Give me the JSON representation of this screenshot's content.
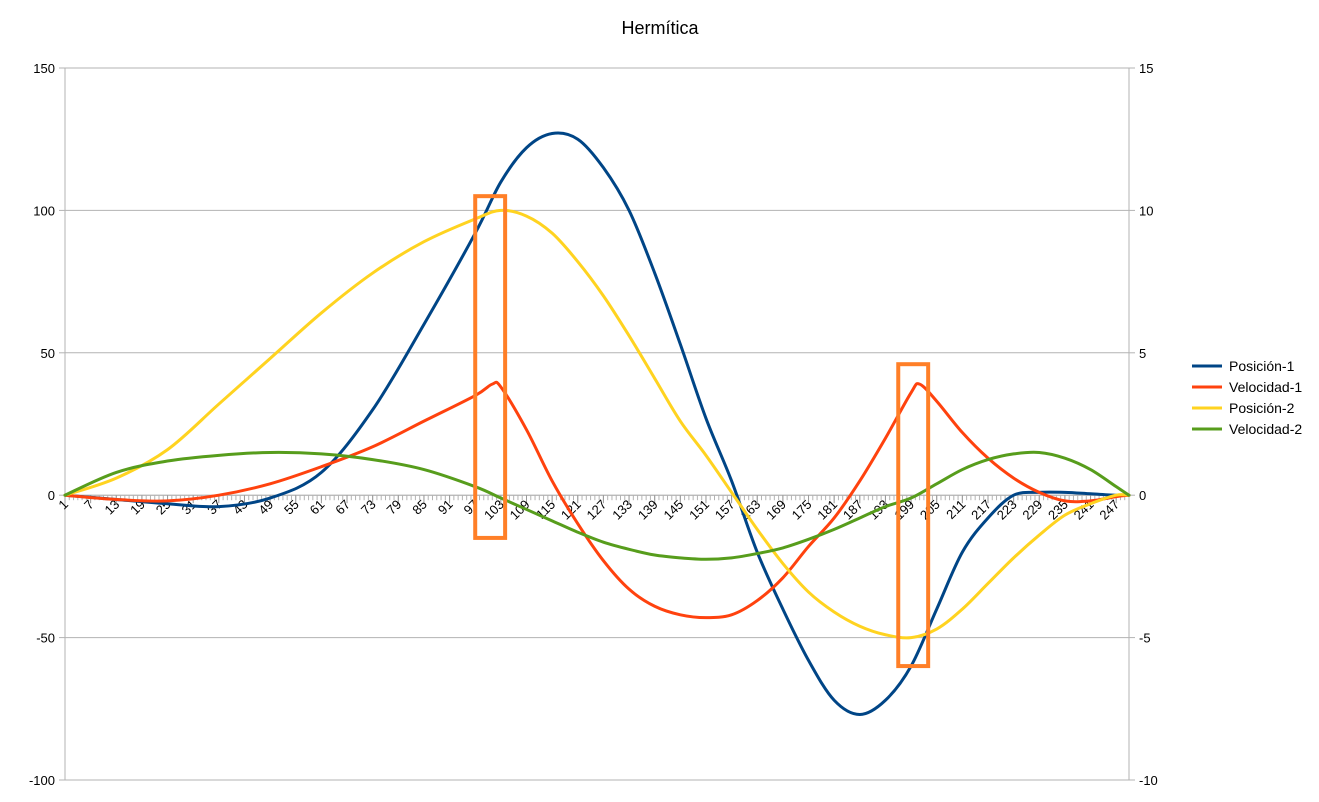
{
  "chart_data": {
    "type": "line",
    "title": "Hermítica",
    "x": {
      "min": 1,
      "max": 250,
      "tick_labels": [
        "1",
        "7",
        "13",
        "19",
        "25",
        "31",
        "37",
        "43",
        "49",
        "55",
        "61",
        "67",
        "73",
        "79",
        "85",
        "91",
        "97",
        "103",
        "109",
        "115",
        "121",
        "127",
        "133",
        "139",
        "145",
        "151",
        "157",
        "163",
        "169",
        "175",
        "181",
        "187",
        "193",
        "199",
        "205",
        "211",
        "217",
        "223",
        "229",
        "235",
        "241",
        "247"
      ]
    },
    "y_left": {
      "min": -100,
      "max": 150,
      "ticks": [
        -100,
        -50,
        0,
        50,
        100,
        150
      ]
    },
    "y_right": {
      "min": -10,
      "max": 15,
      "ticks": [
        -10,
        -5,
        0,
        5,
        10,
        15
      ]
    },
    "grid": true,
    "legend_position": "right",
    "series": [
      {
        "name": "Posición-1",
        "axis": "left",
        "color": "#004586",
        "points": [
          [
            1,
            0
          ],
          [
            13,
            -1.5
          ],
          [
            25,
            -3
          ],
          [
            37,
            -4
          ],
          [
            49,
            -1
          ],
          [
            61,
            8
          ],
          [
            73,
            30
          ],
          [
            85,
            60
          ],
          [
            97,
            92
          ],
          [
            103,
            110
          ],
          [
            109,
            122
          ],
          [
            115,
            127
          ],
          [
            121,
            125
          ],
          [
            127,
            115
          ],
          [
            133,
            100
          ],
          [
            139,
            78
          ],
          [
            145,
            53
          ],
          [
            151,
            27
          ],
          [
            157,
            5
          ],
          [
            163,
            -20
          ],
          [
            169,
            -40
          ],
          [
            175,
            -58
          ],
          [
            181,
            -72
          ],
          [
            187,
            -77
          ],
          [
            193,
            -72
          ],
          [
            199,
            -60
          ],
          [
            205,
            -40
          ],
          [
            211,
            -20
          ],
          [
            217,
            -8
          ],
          [
            223,
            0
          ],
          [
            229,
            1
          ],
          [
            235,
            1
          ],
          [
            241,
            0.5
          ],
          [
            247,
            0
          ],
          [
            250,
            0
          ]
        ]
      },
      {
        "name": "Velocidad-1",
        "axis": "left",
        "color": "#ff420e",
        "points": [
          [
            1,
            0
          ],
          [
            13,
            -1.5
          ],
          [
            25,
            -2
          ],
          [
            37,
            0
          ],
          [
            49,
            4
          ],
          [
            61,
            10
          ],
          [
            73,
            17
          ],
          [
            85,
            26
          ],
          [
            97,
            35
          ],
          [
            101,
            39
          ],
          [
            103,
            38
          ],
          [
            109,
            23
          ],
          [
            115,
            5
          ],
          [
            121,
            -10
          ],
          [
            127,
            -23
          ],
          [
            133,
            -33
          ],
          [
            139,
            -39
          ],
          [
            145,
            -42
          ],
          [
            151,
            -43
          ],
          [
            157,
            -42
          ],
          [
            163,
            -37
          ],
          [
            169,
            -29
          ],
          [
            175,
            -18
          ],
          [
            181,
            -8
          ],
          [
            187,
            5
          ],
          [
            193,
            20
          ],
          [
            199,
            36
          ],
          [
            201,
            39
          ],
          [
            205,
            33
          ],
          [
            211,
            22
          ],
          [
            217,
            13
          ],
          [
            223,
            6
          ],
          [
            229,
            1
          ],
          [
            235,
            -2
          ],
          [
            241,
            -2
          ],
          [
            247,
            -0.5
          ],
          [
            250,
            0
          ]
        ]
      },
      {
        "name": "Posición-2",
        "axis": "left",
        "color": "#ffd320",
        "points": [
          [
            1,
            0
          ],
          [
            13,
            6
          ],
          [
            25,
            16
          ],
          [
            37,
            32
          ],
          [
            49,
            48
          ],
          [
            61,
            64
          ],
          [
            73,
            78
          ],
          [
            85,
            89
          ],
          [
            97,
            97
          ],
          [
            103,
            100
          ],
          [
            109,
            98
          ],
          [
            115,
            92
          ],
          [
            121,
            82
          ],
          [
            127,
            70
          ],
          [
            133,
            56
          ],
          [
            139,
            41
          ],
          [
            145,
            26
          ],
          [
            151,
            14
          ],
          [
            157,
            1
          ],
          [
            163,
            -12
          ],
          [
            169,
            -24
          ],
          [
            175,
            -34
          ],
          [
            181,
            -41
          ],
          [
            187,
            -46
          ],
          [
            193,
            -49
          ],
          [
            199,
            -50
          ],
          [
            205,
            -47
          ],
          [
            211,
            -40
          ],
          [
            217,
            -31
          ],
          [
            223,
            -22
          ],
          [
            229,
            -14
          ],
          [
            235,
            -7
          ],
          [
            241,
            -3
          ],
          [
            247,
            0
          ],
          [
            250,
            0
          ]
        ]
      },
      {
        "name": "Velocidad-2",
        "axis": "right",
        "color": "#579d1c",
        "points": [
          [
            1,
            0
          ],
          [
            13,
            0.8
          ],
          [
            25,
            1.2
          ],
          [
            37,
            1.4
          ],
          [
            49,
            1.5
          ],
          [
            61,
            1.45
          ],
          [
            73,
            1.25
          ],
          [
            85,
            0.9
          ],
          [
            97,
            0.3
          ],
          [
            103,
            -0.1
          ],
          [
            109,
            -0.5
          ],
          [
            115,
            -0.9
          ],
          [
            121,
            -1.3
          ],
          [
            127,
            -1.65
          ],
          [
            133,
            -1.9
          ],
          [
            139,
            -2.1
          ],
          [
            145,
            -2.2
          ],
          [
            151,
            -2.25
          ],
          [
            157,
            -2.2
          ],
          [
            163,
            -2.05
          ],
          [
            169,
            -1.85
          ],
          [
            175,
            -1.55
          ],
          [
            181,
            -1.2
          ],
          [
            187,
            -0.8
          ],
          [
            193,
            -0.4
          ],
          [
            199,
            -0.1
          ],
          [
            205,
            0.4
          ],
          [
            211,
            0.9
          ],
          [
            217,
            1.25
          ],
          [
            223,
            1.45
          ],
          [
            229,
            1.5
          ],
          [
            235,
            1.3
          ],
          [
            241,
            0.9
          ],
          [
            247,
            0.3
          ],
          [
            250,
            0
          ]
        ]
      }
    ],
    "annotations": [
      {
        "kind": "highlight-box",
        "color": "#ff7f27",
        "x_range": [
          97,
          104
        ],
        "y_range": [
          -15,
          105
        ],
        "axis": "left"
      },
      {
        "kind": "highlight-box",
        "color": "#ff7f27",
        "x_range": [
          196,
          203
        ],
        "y_range": [
          -60,
          46
        ],
        "axis": "left"
      }
    ]
  }
}
